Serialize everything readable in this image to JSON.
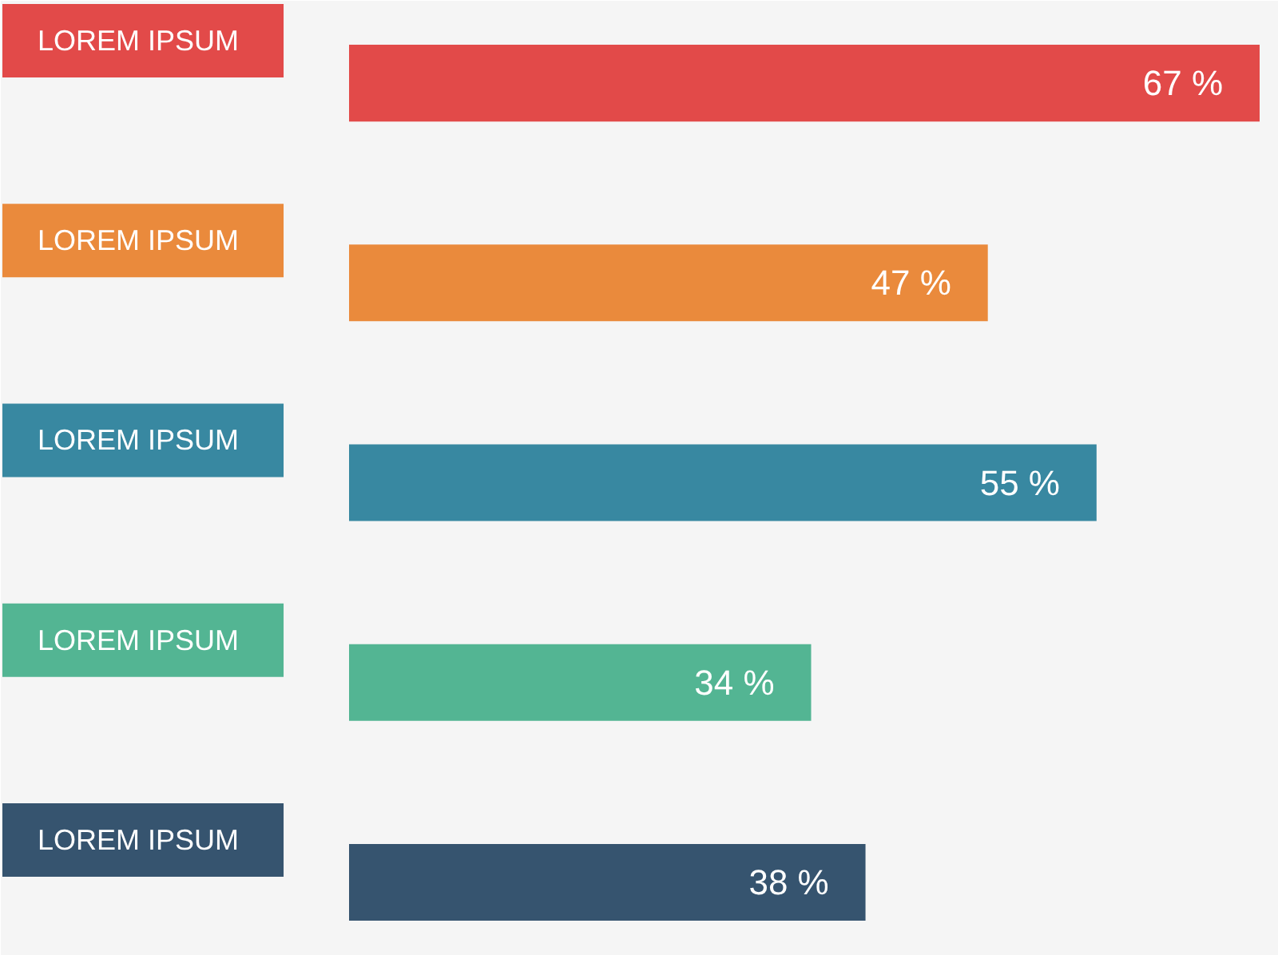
{
  "chart_data": {
    "type": "bar",
    "orientation": "horizontal",
    "categories": [
      "LOREM IPSUM",
      "LOREM IPSUM",
      "LOREM IPSUM",
      "LOREM IPSUM",
      "LOREM IPSUM"
    ],
    "values": [
      67,
      47,
      55,
      34,
      38
    ],
    "colors": [
      "#e24a49",
      "#ea8a3c",
      "#3888a1",
      "#53b593",
      "#36546f"
    ],
    "value_labels": [
      "67 %",
      "47 %",
      "55 %",
      "34 %",
      "38 %"
    ]
  }
}
